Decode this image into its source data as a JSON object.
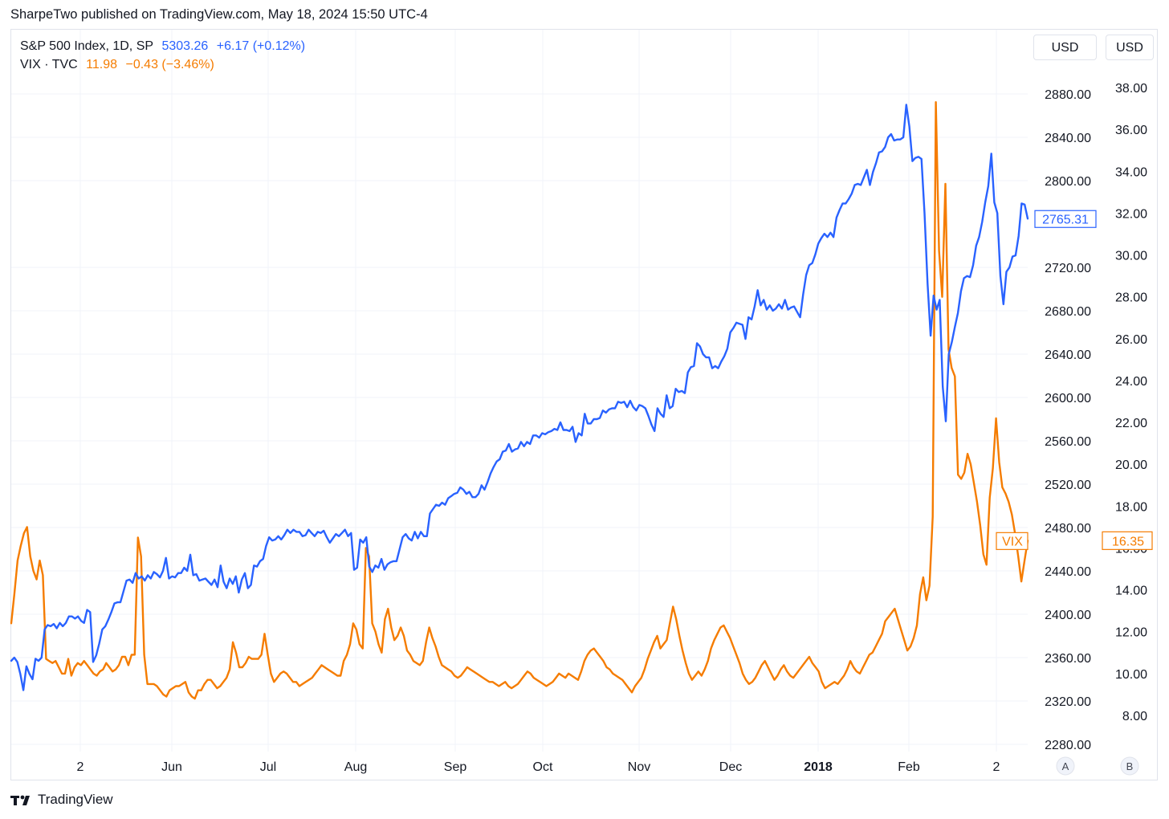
{
  "header": {
    "published": "SharpeTwo published on TradingView.com, May 18, 2024 15:50 UTC-4"
  },
  "legend": {
    "spx": {
      "name": "S&P 500 Index, 1D, SP",
      "value": "5303.26",
      "change": "+6.17 (+0.12%)"
    },
    "vix": {
      "name": "VIX · TVC",
      "value": "11.98",
      "change": "−0.43 (−3.46%)"
    }
  },
  "currency_buttons": [
    "USD",
    "USD"
  ],
  "scale_buttons": [
    "A",
    "B"
  ],
  "footer": {
    "brand": "TradingView"
  },
  "colors": {
    "spx": "#2962ff",
    "vix": "#f57c00",
    "grid": "#f0f3fa",
    "text": "#131722"
  },
  "chart_data": {
    "type": "line",
    "x_tick_labels": [
      "2",
      "Jun",
      "Jul",
      "Aug",
      "Sep",
      "Oct",
      "Nov",
      "Dec",
      "2018",
      "Feb",
      "2"
    ],
    "left_axis": {
      "ticks": [
        "2880.00",
        "2840.00",
        "2800.00",
        "2720.00",
        "2680.00",
        "2640.00",
        "2600.00",
        "2560.00",
        "2520.00",
        "2480.00",
        "2440.00",
        "2400.00",
        "2360.00",
        "2320.00",
        "2280.00"
      ],
      "ylim": [
        2280,
        2880
      ]
    },
    "right_axis": {
      "ticks": [
        "38.00",
        "36.00",
        "34.00",
        "32.00",
        "30.00",
        "28.00",
        "26.00",
        "24.00",
        "22.00",
        "20.00",
        "18.00",
        "16.00",
        "14.00",
        "12.00",
        "10.00",
        "8.00"
      ],
      "ylim": [
        8,
        38
      ]
    },
    "series": [
      {
        "name": "S&P 500 Index, 1D, SP",
        "axis": "left",
        "last_value_label": "2765.31",
        "values": [
          2357,
          2360,
          2356,
          2345,
          2330,
          2352,
          2345,
          2340,
          2359,
          2357,
          2360,
          2386,
          2390,
          2389,
          2391,
          2387,
          2392,
          2389,
          2392,
          2398,
          2398,
          2396,
          2398,
          2394,
          2392,
          2404,
          2402,
          2356,
          2362,
          2373,
          2386,
          2389,
          2395,
          2402,
          2410,
          2411,
          2411,
          2421,
          2431,
          2432,
          2429,
          2438,
          2433,
          2435,
          2431,
          2436,
          2433,
          2439,
          2437,
          2434,
          2440,
          2452,
          2433,
          2435,
          2434,
          2438,
          2438,
          2443,
          2440,
          2455,
          2436,
          2437,
          2431,
          2432,
          2433,
          2430,
          2427,
          2432,
          2425,
          2445,
          2430,
          2424,
          2433,
          2428,
          2435,
          2420,
          2432,
          2438,
          2424,
          2427,
          2445,
          2444,
          2449,
          2451,
          2463,
          2471,
          2468,
          2469,
          2472,
          2469,
          2473,
          2478,
          2475,
          2478,
          2476,
          2476,
          2472,
          2473,
          2478,
          2475,
          2472,
          2476,
          2475,
          2477,
          2471,
          2466,
          2470,
          2474,
          2472,
          2475,
          2478,
          2472,
          2475,
          2441,
          2443,
          2469,
          2466,
          2471,
          2444,
          2439,
          2445,
          2443,
          2451,
          2441,
          2446,
          2448,
          2449,
          2449,
          2460,
          2471,
          2474,
          2470,
          2468,
          2476,
          2470,
          2476,
          2472,
          2472,
          2493,
          2497,
          2501,
          2500,
          2503,
          2501,
          2507,
          2509,
          2511,
          2512,
          2517,
          2515,
          2511,
          2513,
          2508,
          2508,
          2511,
          2519,
          2515,
          2522,
          2530,
          2536,
          2541,
          2543,
          2550,
          2551,
          2557,
          2550,
          2552,
          2553,
          2559,
          2555,
          2559,
          2557,
          2565,
          2565,
          2563,
          2567,
          2566,
          2568,
          2569,
          2571,
          2570,
          2577,
          2570,
          2570,
          2569,
          2573,
          2559,
          2567,
          2565,
          2585,
          2576,
          2576,
          2580,
          2580,
          2581,
          2588,
          2586,
          2589,
          2590,
          2590,
          2596,
          2595,
          2596,
          2591,
          2597,
          2591,
          2588,
          2593,
          2592,
          2590,
          2583,
          2575,
          2569,
          2590,
          2585,
          2582,
          2602,
          2590,
          2592,
          2608,
          2605,
          2606,
          2604,
          2623,
          2628,
          2629,
          2650,
          2647,
          2640,
          2637,
          2637,
          2627,
          2629,
          2627,
          2633,
          2638,
          2645,
          2660,
          2664,
          2669,
          2668,
          2667,
          2654,
          2674,
          2672,
          2684,
          2699,
          2685,
          2690,
          2681,
          2685,
          2680,
          2682,
          2686,
          2682,
          2690,
          2681,
          2683,
          2684,
          2679,
          2674,
          2695,
          2713,
          2722,
          2724,
          2732,
          2742,
          2747,
          2751,
          2748,
          2752,
          2748,
          2766,
          2773,
          2779,
          2779,
          2783,
          2788,
          2796,
          2797,
          2796,
          2803,
          2810,
          2796,
          2808,
          2816,
          2826,
          2827,
          2831,
          2840,
          2843,
          2837,
          2838,
          2838,
          2840,
          2870,
          2850,
          2818,
          2821,
          2822,
          2820,
          2770,
          2705,
          2657,
          2694,
          2681,
          2690,
          2610,
          2578,
          2640,
          2651,
          2665,
          2678,
          2698,
          2710,
          2712,
          2711,
          2722,
          2740,
          2748,
          2762,
          2780,
          2795,
          2825,
          2780,
          2770,
          2712,
          2686,
          2716,
          2720,
          2730,
          2731,
          2749,
          2779,
          2778,
          2765
        ]
      },
      {
        "name": "VIX · TVC",
        "axis": "right",
        "last_value_label": "16.35",
        "tag": "VIX",
        "values": [
          12.4,
          13.8,
          15.4,
          16.1,
          16.7,
          17.0,
          15.6,
          14.9,
          14.5,
          15.4,
          14.7,
          10.7,
          10.6,
          10.5,
          10.6,
          10.3,
          10.0,
          10.0,
          10.7,
          9.9,
          10.3,
          10.5,
          10.4,
          10.6,
          10.4,
          10.2,
          10.0,
          9.9,
          10.1,
          10.2,
          10.5,
          10.3,
          10.1,
          10.2,
          10.4,
          10.8,
          10.8,
          10.4,
          10.9,
          10.9,
          16.5,
          15.6,
          10.9,
          9.5,
          9.5,
          9.5,
          9.4,
          9.2,
          9.0,
          8.9,
          9.2,
          9.3,
          9.4,
          9.4,
          9.5,
          9.6,
          9.1,
          8.9,
          8.8,
          9.2,
          9.2,
          9.5,
          9.7,
          9.7,
          9.5,
          9.3,
          9.4,
          9.6,
          9.8,
          10.2,
          11.5,
          11.0,
          10.3,
          10.3,
          10.5,
          10.8,
          10.7,
          10.7,
          10.7,
          10.9,
          11.9,
          10.9,
          10.0,
          9.6,
          9.8,
          10.0,
          10.1,
          10.0,
          9.8,
          9.6,
          9.6,
          9.4,
          9.5,
          9.6,
          9.7,
          9.8,
          10.0,
          10.2,
          10.4,
          10.3,
          10.2,
          10.1,
          10.0,
          9.9,
          9.9,
          10.6,
          10.9,
          11.4,
          12.4,
          12.1,
          11.4,
          11.2,
          16.0,
          15.6,
          12.4,
          12.0,
          11.4,
          11.0,
          12.6,
          13.1,
          12.2,
          11.6,
          11.8,
          12.2,
          11.8,
          11.1,
          10.9,
          10.6,
          10.5,
          10.4,
          10.6,
          11.5,
          12.2,
          11.7,
          11.3,
          10.8,
          10.4,
          10.3,
          10.2,
          10.1,
          9.9,
          9.8,
          9.9,
          10.1,
          10.3,
          10.2,
          10.1,
          10.0,
          9.9,
          9.8,
          9.7,
          9.6,
          9.6,
          9.5,
          9.4,
          9.5,
          9.6,
          9.4,
          9.3,
          9.4,
          9.5,
          9.7,
          9.9,
          10.1,
          10.0,
          9.8,
          9.7,
          9.6,
          9.5,
          9.4,
          9.5,
          9.6,
          9.8,
          10.0,
          9.9,
          9.8,
          10.0,
          9.9,
          9.8,
          9.7,
          10.1,
          10.6,
          10.9,
          11.1,
          11.2,
          11.0,
          10.8,
          10.6,
          10.3,
          10.2,
          10.0,
          9.9,
          9.8,
          9.7,
          9.5,
          9.3,
          9.1,
          9.4,
          9.6,
          9.8,
          10.2,
          10.7,
          11.1,
          11.5,
          11.8,
          11.2,
          11.4,
          11.6,
          12.4,
          13.2,
          12.6,
          11.8,
          11.1,
          10.5,
          10.0,
          9.7,
          9.9,
          10.1,
          9.9,
          10.2,
          10.6,
          11.2,
          11.6,
          11.9,
          12.2,
          12.3,
          12.0,
          11.7,
          11.3,
          10.9,
          10.5,
          10.0,
          9.7,
          9.5,
          9.6,
          9.8,
          10.1,
          10.4,
          10.6,
          10.3,
          10.0,
          9.7,
          9.9,
          10.2,
          10.4,
          10.1,
          9.9,
          9.8,
          10.0,
          10.2,
          10.4,
          10.6,
          10.8,
          10.5,
          10.3,
          10.1,
          9.6,
          9.3,
          9.4,
          9.5,
          9.6,
          9.5,
          9.7,
          9.9,
          10.2,
          10.6,
          10.3,
          10.1,
          10.0,
          10.3,
          10.6,
          10.9,
          11.0,
          11.3,
          11.6,
          11.9,
          12.5,
          12.7,
          12.9,
          13.1,
          12.6,
          12.1,
          11.6,
          11.1,
          11.3,
          11.7,
          12.3,
          13.8,
          14.6,
          13.5,
          14.2,
          17.5,
          37.3,
          30.2,
          28.0,
          33.4,
          25.5,
          24.6,
          24.2,
          19.5,
          19.3,
          19.6,
          20.5,
          20.0,
          19.1,
          18.2,
          17.1,
          15.7,
          15.2,
          18.4,
          19.8,
          22.2,
          20.1,
          18.9,
          18.6,
          18.2,
          17.6,
          16.7,
          15.6,
          14.4,
          15.4,
          16.35
        ]
      }
    ]
  }
}
